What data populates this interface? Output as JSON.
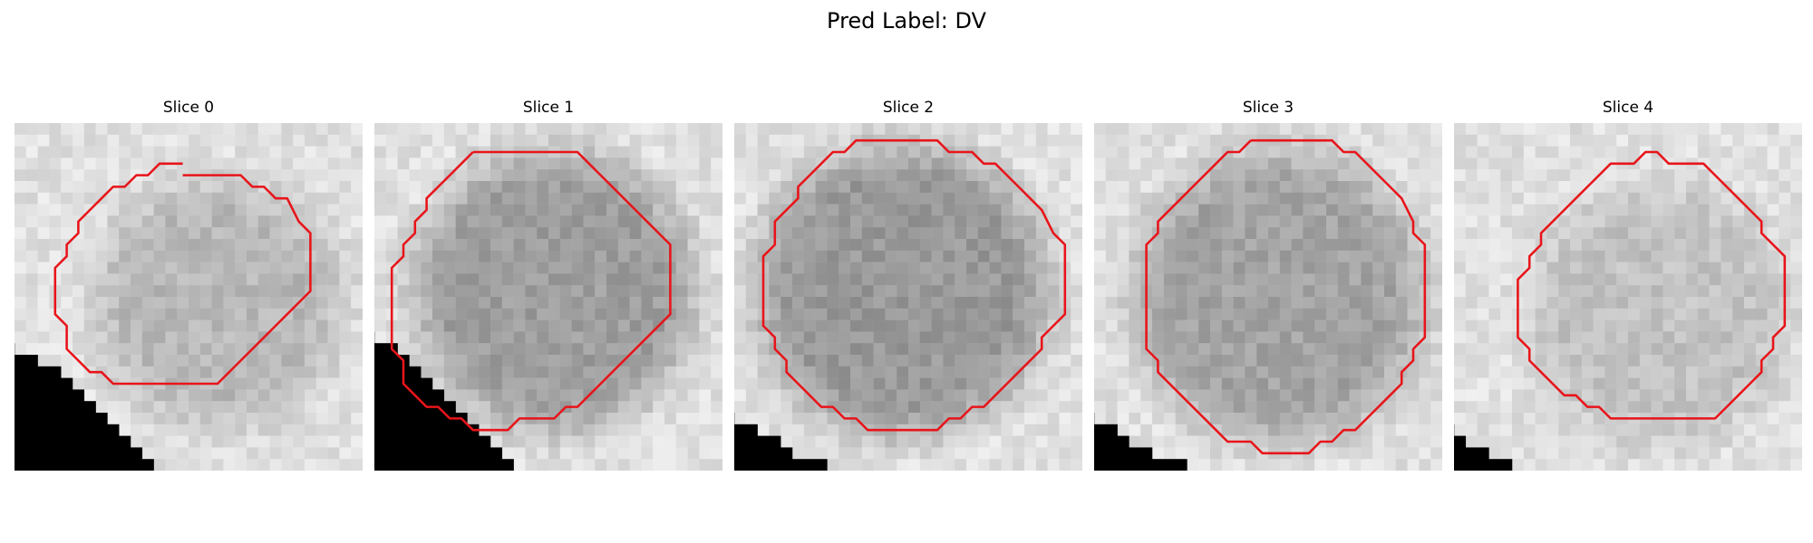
{
  "figure": {
    "title": "Pred Label: DV",
    "contour_color": "#e8141a"
  },
  "slices": [
    {
      "label": "Slice 0",
      "seed": 11,
      "lesion": {
        "cx": 17.5,
        "cy": 15.5,
        "r": 10.5,
        "shade": 0.72
      },
      "contour": [
        [
          14.5,
          4.5
        ],
        [
          16.5,
          4.5
        ],
        [
          18.5,
          4.5
        ],
        [
          19.5,
          4.5
        ],
        [
          20.5,
          5.5
        ],
        [
          21.5,
          5.5
        ],
        [
          22.5,
          6.5
        ],
        [
          23.5,
          6.5
        ],
        [
          24.5,
          8.5
        ],
        [
          25.5,
          9.5
        ],
        [
          25.5,
          11.5
        ],
        [
          25.5,
          14.5
        ],
        [
          24.5,
          15.5
        ],
        [
          23.5,
          16.5
        ],
        [
          22.5,
          17.5
        ],
        [
          21.5,
          18.5
        ],
        [
          20.5,
          19.5
        ],
        [
          19.5,
          20.5
        ],
        [
          18.5,
          21.5
        ],
        [
          17.5,
          22.5
        ],
        [
          16.5,
          22.5
        ],
        [
          14.5,
          22.5
        ],
        [
          12.5,
          22.5
        ],
        [
          10.5,
          22.5
        ],
        [
          8.5,
          22.5
        ],
        [
          7.5,
          21.5
        ],
        [
          6.5,
          21.5
        ],
        [
          5.5,
          20.5
        ],
        [
          4.5,
          19.5
        ],
        [
          4.5,
          17.5
        ],
        [
          3.5,
          16.5
        ],
        [
          3.5,
          14.5
        ],
        [
          3.5,
          12.5
        ],
        [
          4.5,
          11.5
        ],
        [
          4.5,
          10.5
        ],
        [
          5.5,
          9.5
        ],
        [
          5.5,
          8.5
        ],
        [
          6.5,
          7.5
        ],
        [
          7.5,
          6.5
        ],
        [
          8.5,
          5.5
        ],
        [
          9.5,
          5.5
        ],
        [
          10.5,
          4.5
        ],
        [
          11.5,
          4.5
        ],
        [
          12.5,
          3.5
        ],
        [
          13.5,
          3.5
        ],
        [
          14.5,
          3.5
        ]
      ],
      "mask_steps": [
        [
          0,
          19
        ],
        [
          2,
          20
        ],
        [
          4,
          21
        ],
        [
          5,
          22
        ],
        [
          6,
          23
        ],
        [
          7,
          24
        ],
        [
          8,
          25
        ],
        [
          9,
          26
        ],
        [
          10,
          27
        ],
        [
          11,
          28
        ],
        [
          12,
          29
        ]
      ]
    },
    {
      "label": "Slice 1",
      "seed": 23,
      "lesion": {
        "cx": 15.5,
        "cy": 14.5,
        "r": 12.0,
        "shade": 0.62
      },
      "contour": [
        [
          8.5,
          2.5
        ],
        [
          9.5,
          2.5
        ],
        [
          11.5,
          2.5
        ],
        [
          13.5,
          2.5
        ],
        [
          15.5,
          2.5
        ],
        [
          17.5,
          2.5
        ],
        [
          18.5,
          3.5
        ],
        [
          19.5,
          4.5
        ],
        [
          20.5,
          5.5
        ],
        [
          21.5,
          6.5
        ],
        [
          22.5,
          7.5
        ],
        [
          23.5,
          8.5
        ],
        [
          24.5,
          9.5
        ],
        [
          25.5,
          10.5
        ],
        [
          25.5,
          12.5
        ],
        [
          25.5,
          14.5
        ],
        [
          25.5,
          16.5
        ],
        [
          24.5,
          17.5
        ],
        [
          23.5,
          18.5
        ],
        [
          22.5,
          19.5
        ],
        [
          21.5,
          20.5
        ],
        [
          20.5,
          21.5
        ],
        [
          19.5,
          22.5
        ],
        [
          18.5,
          23.5
        ],
        [
          17.5,
          24.5
        ],
        [
          16.5,
          24.5
        ],
        [
          15.5,
          25.5
        ],
        [
          14.5,
          25.5
        ],
        [
          13.5,
          25.5
        ],
        [
          12.5,
          25.5
        ],
        [
          11.5,
          26.5
        ],
        [
          10.5,
          26.5
        ],
        [
          9.5,
          26.5
        ],
        [
          8.5,
          26.5
        ],
        [
          7.5,
          25.5
        ],
        [
          6.5,
          25.5
        ],
        [
          5.5,
          24.5
        ],
        [
          4.5,
          24.5
        ],
        [
          3.5,
          23.5
        ],
        [
          2.5,
          22.5
        ],
        [
          2.5,
          21.5
        ],
        [
          2.5,
          20.5
        ],
        [
          1.5,
          19.5
        ],
        [
          1.5,
          17.5
        ],
        [
          1.5,
          15.5
        ],
        [
          1.5,
          13.5
        ],
        [
          1.5,
          12.5
        ],
        [
          2.5,
          11.5
        ],
        [
          2.5,
          10.5
        ],
        [
          3.5,
          9.5
        ],
        [
          3.5,
          8.5
        ],
        [
          4.5,
          7.5
        ],
        [
          4.5,
          6.5
        ],
        [
          5.5,
          5.5
        ],
        [
          6.5,
          4.5
        ],
        [
          7.5,
          3.5
        ],
        [
          8.5,
          2.5
        ]
      ],
      "mask_steps": [
        [
          0,
          18
        ],
        [
          2,
          19
        ],
        [
          3,
          20
        ],
        [
          4,
          21
        ],
        [
          5,
          22
        ],
        [
          6,
          23
        ],
        [
          7,
          24
        ],
        [
          8,
          25
        ],
        [
          9,
          26
        ],
        [
          10,
          27
        ],
        [
          11,
          28
        ],
        [
          12,
          29
        ]
      ]
    },
    {
      "label": "Slice 2",
      "seed": 37,
      "lesion": {
        "cx": 14.5,
        "cy": 14.5,
        "r": 12.5,
        "shade": 0.6
      },
      "contour": [
        [
          11.5,
          1.5
        ],
        [
          13.5,
          1.5
        ],
        [
          15.5,
          1.5
        ],
        [
          17.5,
          1.5
        ],
        [
          18.5,
          2.5
        ],
        [
          19.5,
          2.5
        ],
        [
          20.5,
          2.5
        ],
        [
          21.5,
          3.5
        ],
        [
          22.5,
          3.5
        ],
        [
          23.5,
          4.5
        ],
        [
          24.5,
          5.5
        ],
        [
          25.5,
          6.5
        ],
        [
          26.5,
          7.5
        ],
        [
          27.5,
          9.5
        ],
        [
          28.5,
          10.5
        ],
        [
          28.5,
          12.5
        ],
        [
          28.5,
          14.5
        ],
        [
          28.5,
          16.5
        ],
        [
          27.5,
          17.5
        ],
        [
          26.5,
          18.5
        ],
        [
          26.5,
          19.5
        ],
        [
          25.5,
          20.5
        ],
        [
          24.5,
          21.5
        ],
        [
          23.5,
          22.5
        ],
        [
          22.5,
          23.5
        ],
        [
          21.5,
          24.5
        ],
        [
          20.5,
          24.5
        ],
        [
          19.5,
          25.5
        ],
        [
          18.5,
          25.5
        ],
        [
          17.5,
          26.5
        ],
        [
          15.5,
          26.5
        ],
        [
          13.5,
          26.5
        ],
        [
          11.5,
          26.5
        ],
        [
          10.5,
          25.5
        ],
        [
          9.5,
          25.5
        ],
        [
          8.5,
          24.5
        ],
        [
          7.5,
          24.5
        ],
        [
          6.5,
          23.5
        ],
        [
          5.5,
          22.5
        ],
        [
          4.5,
          21.5
        ],
        [
          4.5,
          20.5
        ],
        [
          3.5,
          19.5
        ],
        [
          3.5,
          18.5
        ],
        [
          2.5,
          17.5
        ],
        [
          2.5,
          15.5
        ],
        [
          2.5,
          13.5
        ],
        [
          2.5,
          11.5
        ],
        [
          3.5,
          10.5
        ],
        [
          3.5,
          8.5
        ],
        [
          4.5,
          7.5
        ],
        [
          5.5,
          6.5
        ],
        [
          5.5,
          5.5
        ],
        [
          6.5,
          4.5
        ],
        [
          7.5,
          3.5
        ],
        [
          8.5,
          2.5
        ],
        [
          9.5,
          2.5
        ],
        [
          10.5,
          1.5
        ],
        [
          11.5,
          1.5
        ]
      ],
      "mask_steps": [
        [
          0,
          25
        ],
        [
          2,
          26
        ],
        [
          4,
          27
        ],
        [
          5,
          28
        ],
        [
          8,
          29
        ]
      ]
    },
    {
      "label": "Slice 3",
      "seed": 53,
      "lesion": {
        "cx": 16.0,
        "cy": 15.0,
        "r": 12.5,
        "shade": 0.64
      },
      "contour": [
        [
          13.5,
          1.5
        ],
        [
          15.5,
          1.5
        ],
        [
          17.5,
          1.5
        ],
        [
          19.5,
          1.5
        ],
        [
          20.5,
          1.5
        ],
        [
          21.5,
          2.5
        ],
        [
          22.5,
          2.5
        ],
        [
          23.5,
          3.5
        ],
        [
          24.5,
          4.5
        ],
        [
          25.5,
          5.5
        ],
        [
          26.5,
          6.5
        ],
        [
          27.5,
          8.5
        ],
        [
          27.5,
          9.5
        ],
        [
          28.5,
          10.5
        ],
        [
          28.5,
          12.5
        ],
        [
          28.5,
          14.5
        ],
        [
          28.5,
          16.5
        ],
        [
          28.5,
          18.5
        ],
        [
          27.5,
          19.5
        ],
        [
          27.5,
          20.5
        ],
        [
          26.5,
          21.5
        ],
        [
          26.5,
          22.5
        ],
        [
          25.5,
          23.5
        ],
        [
          24.5,
          24.5
        ],
        [
          23.5,
          25.5
        ],
        [
          22.5,
          26.5
        ],
        [
          21.5,
          26.5
        ],
        [
          20.5,
          27.5
        ],
        [
          19.5,
          27.5
        ],
        [
          18.5,
          28.5
        ],
        [
          17.5,
          28.5
        ],
        [
          16.5,
          28.5
        ],
        [
          15.5,
          28.5
        ],
        [
          14.5,
          28.5
        ],
        [
          13.5,
          27.5
        ],
        [
          12.5,
          27.5
        ],
        [
          11.5,
          27.5
        ],
        [
          10.5,
          26.5
        ],
        [
          9.5,
          25.5
        ],
        [
          8.5,
          24.5
        ],
        [
          7.5,
          23.5
        ],
        [
          6.5,
          22.5
        ],
        [
          5.5,
          21.5
        ],
        [
          5.5,
          20.5
        ],
        [
          4.5,
          19.5
        ],
        [
          4.5,
          18.5
        ],
        [
          4.5,
          16.5
        ],
        [
          4.5,
          14.5
        ],
        [
          4.5,
          12.5
        ],
        [
          4.5,
          10.5
        ],
        [
          5.5,
          9.5
        ],
        [
          5.5,
          8.5
        ],
        [
          6.5,
          7.5
        ],
        [
          7.5,
          6.5
        ],
        [
          8.5,
          5.5
        ],
        [
          9.5,
          4.5
        ],
        [
          10.5,
          3.5
        ],
        [
          11.5,
          2.5
        ],
        [
          12.5,
          2.5
        ],
        [
          13.5,
          1.5
        ]
      ],
      "mask_steps": [
        [
          0,
          25
        ],
        [
          2,
          26
        ],
        [
          3,
          27
        ],
        [
          5,
          28
        ],
        [
          8,
          29
        ]
      ]
    },
    {
      "label": "Slice 4",
      "seed": 71,
      "lesion": {
        "cx": 17.5,
        "cy": 16.5,
        "r": 11.0,
        "shade": 0.76
      },
      "contour": [
        [
          14.5,
          3.5
        ],
        [
          15.5,
          3.5
        ],
        [
          16.5,
          2.5
        ],
        [
          17.5,
          2.5
        ],
        [
          18.5,
          3.5
        ],
        [
          20.5,
          3.5
        ],
        [
          21.5,
          3.5
        ],
        [
          22.5,
          4.5
        ],
        [
          23.5,
          5.5
        ],
        [
          24.5,
          6.5
        ],
        [
          25.5,
          7.5
        ],
        [
          26.5,
          8.5
        ],
        [
          26.5,
          9.5
        ],
        [
          27.5,
          10.5
        ],
        [
          28.5,
          11.5
        ],
        [
          28.5,
          13.5
        ],
        [
          28.5,
          15.5
        ],
        [
          28.5,
          17.5
        ],
        [
          27.5,
          18.5
        ],
        [
          27.5,
          19.5
        ],
        [
          26.5,
          20.5
        ],
        [
          26.5,
          21.5
        ],
        [
          25.5,
          22.5
        ],
        [
          24.5,
          23.5
        ],
        [
          23.5,
          24.5
        ],
        [
          22.5,
          25.5
        ],
        [
          20.5,
          25.5
        ],
        [
          18.5,
          25.5
        ],
        [
          16.5,
          25.5
        ],
        [
          14.5,
          25.5
        ],
        [
          13.5,
          25.5
        ],
        [
          12.5,
          24.5
        ],
        [
          11.5,
          24.5
        ],
        [
          10.5,
          23.5
        ],
        [
          9.5,
          23.5
        ],
        [
          8.5,
          22.5
        ],
        [
          7.5,
          21.5
        ],
        [
          6.5,
          20.5
        ],
        [
          6.5,
          19.5
        ],
        [
          5.5,
          18.5
        ],
        [
          5.5,
          16.5
        ],
        [
          5.5,
          14.5
        ],
        [
          5.5,
          13.5
        ],
        [
          6.5,
          12.5
        ],
        [
          6.5,
          11.5
        ],
        [
          7.5,
          10.5
        ],
        [
          7.5,
          9.5
        ],
        [
          8.5,
          8.5
        ],
        [
          9.5,
          7.5
        ],
        [
          10.5,
          6.5
        ],
        [
          11.5,
          5.5
        ],
        [
          12.5,
          4.5
        ],
        [
          13.5,
          3.5
        ],
        [
          14.5,
          3.5
        ]
      ],
      "mask_steps": [
        [
          0,
          26
        ],
        [
          1,
          27
        ],
        [
          3,
          28
        ],
        [
          5,
          29
        ],
        [
          8,
          30
        ]
      ]
    }
  ]
}
